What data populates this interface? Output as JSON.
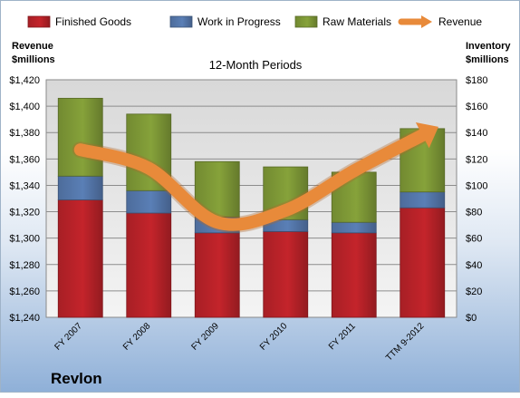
{
  "chart_data": {
    "type": "bar",
    "subtitle": "12-Month Periods",
    "company": "Revlon",
    "y_left_label": [
      "Revenue",
      "$millions"
    ],
    "y_right_label": [
      "Inventory",
      "$millions"
    ],
    "categories": [
      "FY 2007",
      "FY 2008",
      "FY 2009",
      "FY 2010",
      "FY 2011",
      "TTM 9-2012"
    ],
    "y_left_ticks": [
      "$1,240",
      "$1,260",
      "$1,280",
      "$1,300",
      "$1,320",
      "$1,340",
      "$1,360",
      "$1,380",
      "$1,400",
      "$1,420"
    ],
    "y_right_ticks": [
      "$0",
      "$20",
      "$40",
      "$60",
      "$80",
      "$100",
      "$120",
      "$140",
      "$160",
      "$180"
    ],
    "y_left_range": [
      1240,
      1420
    ],
    "y_right_range": [
      0,
      180
    ],
    "series": [
      {
        "name": "Finished Goods",
        "kind": "bar-stacked",
        "axis": "right",
        "color": "#c4242b",
        "values": [
          89,
          79,
          64,
          65,
          64,
          83
        ]
      },
      {
        "name": "Work in Progress",
        "kind": "bar-stacked",
        "axis": "right",
        "color": "#5a7fb6",
        "values": [
          18,
          17,
          12,
          9,
          8,
          12
        ]
      },
      {
        "name": "Raw Materials",
        "kind": "bar-stacked",
        "axis": "right",
        "color": "#86a23a",
        "values": [
          59,
          58,
          42,
          40,
          38,
          48
        ]
      },
      {
        "name": "Revenue",
        "kind": "line",
        "axis": "left",
        "color": "#e88a3a",
        "values": [
          1367,
          1353,
          1312,
          1321,
          1351,
          1378
        ]
      }
    ],
    "grid": true,
    "legend": "top"
  }
}
